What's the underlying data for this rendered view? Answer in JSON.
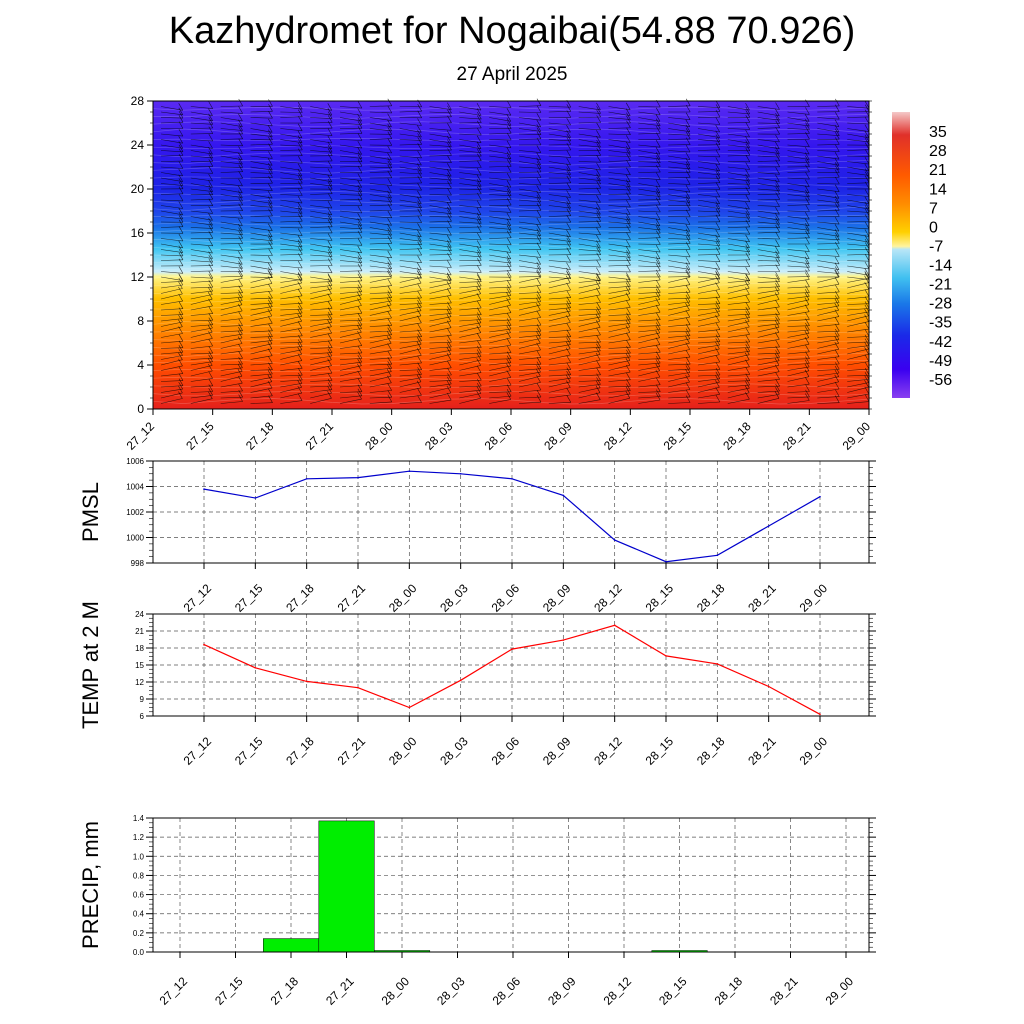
{
  "title": "Kazhydromet for Nogaibai(54.88 70.926)",
  "subtitle": "27 April 2025",
  "colors": {
    "pmsl_line": "#0000cc",
    "temp_line": "#ff0000",
    "precip_bar": "#00ee00",
    "colorbar": [
      "#f4c8c8",
      "#e0302a",
      "#ff5a00",
      "#ff8c00",
      "#ffd000",
      "#fff4a0",
      "#b9e6f7",
      "#40c0f0",
      "#1a78e8",
      "#1a2ae8",
      "#3a00f0",
      "#8a40f0"
    ]
  },
  "chart_data": [
    {
      "type": "heatmap",
      "title": "",
      "xlabel": "",
      "ylabel": "",
      "x_ticks": [
        "27_12",
        "27_15",
        "27_18",
        "27_21",
        "28_00",
        "28_03",
        "28_06",
        "28_09",
        "28_12",
        "28_15",
        "28_18",
        "28_21",
        "29_00"
      ],
      "y_ticks": [
        "0",
        "4",
        "8",
        "12",
        "16",
        "20",
        "24",
        "28"
      ],
      "ylim": [
        0,
        28
      ],
      "colorbar_labels": [
        "35",
        "28",
        "21",
        "14",
        "7",
        "0",
        "-7",
        "-14",
        "-21",
        "-28",
        "-35",
        "-42",
        "-49",
        "-56"
      ],
      "colorbar_range": [
        -63,
        42
      ],
      "approx_field": {
        "description_levels": [
          0,
          4,
          8,
          12,
          16,
          20,
          24,
          28
        ],
        "values_at_levels": [
          20,
          14,
          4,
          -8,
          -40,
          -58,
          -60,
          -56
        ]
      }
    },
    {
      "type": "line",
      "ylabel": "PMSL",
      "categories": [
        "27_12",
        "27_15",
        "27_18",
        "27_21",
        "28_00",
        "28_03",
        "28_06",
        "28_09",
        "28_12",
        "28_15",
        "28_18",
        "28_21",
        "29_00"
      ],
      "values": [
        1003.8,
        1003.1,
        1004.6,
        1004.7,
        1005.2,
        1005.0,
        1004.6,
        1003.3,
        999.8,
        998.1,
        998.6,
        1000.9,
        1003.2
      ],
      "y_ticks": [
        "998",
        "1000",
        "1002",
        "1004",
        "1006"
      ],
      "ylim": [
        998,
        1006
      ],
      "grid": true
    },
    {
      "type": "line",
      "ylabel": "TEMP at 2 M",
      "categories": [
        "27_12",
        "27_15",
        "27_18",
        "27_21",
        "28_00",
        "28_03",
        "28_06",
        "28_09",
        "28_12",
        "28_15",
        "28_18",
        "28_21",
        "29_00"
      ],
      "values": [
        18.6,
        14.5,
        12.1,
        11.0,
        7.5,
        12.3,
        17.8,
        19.4,
        22.0,
        16.6,
        15.2,
        11.2,
        6.3
      ],
      "y_ticks": [
        "6",
        "9",
        "12",
        "15",
        "18",
        "21",
        "24"
      ],
      "ylim": [
        6,
        24
      ],
      "grid": true
    },
    {
      "type": "bar",
      "ylabel": "PRECIP, mm",
      "categories": [
        "27_12",
        "27_15",
        "27_18",
        "27_21",
        "28_00",
        "28_03",
        "28_06",
        "28_09",
        "28_12",
        "28_15",
        "28_18",
        "28_21",
        "29_00"
      ],
      "values": [
        0,
        0,
        0.14,
        1.37,
        0.01,
        0,
        0,
        0,
        0,
        0.01,
        0,
        0,
        0
      ],
      "y_ticks": [
        "0.0",
        "0.2",
        "0.4",
        "0.6",
        "0.8",
        "1.0",
        "1.2",
        "1.4"
      ],
      "ylim": [
        0,
        1.4
      ],
      "grid": true
    }
  ]
}
